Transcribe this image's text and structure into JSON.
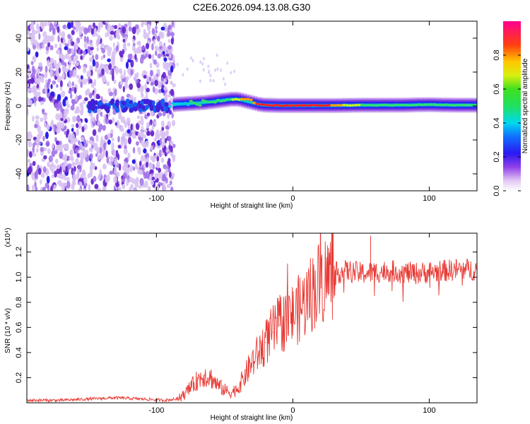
{
  "title": "C2E6.2026.094.13.08.G30",
  "colors": {
    "signal_line": "#e83a34",
    "scatter": "#6a28d8",
    "background": "#ffffff"
  },
  "chart_data": [
    {
      "type": "heatmap",
      "name": "spectrogram",
      "xlabel": "Height of straight line (km)",
      "ylabel": "Frequency (Hz)",
      "xlim": [
        -195,
        135
      ],
      "ylim": [
        -50,
        50
      ],
      "xticks": [
        -100,
        0,
        100
      ],
      "yticks": [
        -40,
        -20,
        0,
        20,
        40
      ],
      "colorbar": {
        "label": "Normalized spectral amplitude",
        "range": [
          0.0,
          1.0
        ],
        "ticks": [
          0.0,
          0.2,
          0.4,
          0.6,
          0.8
        ]
      },
      "noise_region_x": [
        -195,
        -87
      ],
      "track": {
        "x": [
          -95,
          -85,
          -75,
          -65,
          -55,
          -45,
          -40,
          -35,
          -30,
          -25,
          -20,
          -10,
          0,
          10,
          20,
          30,
          40,
          50,
          60,
          70,
          80,
          90,
          100,
          110,
          120,
          135
        ],
        "freq": [
          0,
          1,
          1.5,
          2,
          3,
          4,
          4,
          3,
          2,
          1,
          0.5,
          0.3,
          0.3,
          0.3,
          0.3,
          0.3,
          0.4,
          0.5,
          0.5,
          0.5,
          0.5,
          0.7,
          0.8,
          0.6,
          0.5,
          0.5
        ],
        "amplitude": [
          0.3,
          0.4,
          0.45,
          0.5,
          0.55,
          0.6,
          0.7,
          0.8,
          0.85,
          0.9,
          0.95,
          1.0,
          1.0,
          1.0,
          0.95,
          0.85,
          0.7,
          0.6,
          0.55,
          0.55,
          0.55,
          0.55,
          0.6,
          0.55,
          0.5,
          0.5
        ]
      }
    },
    {
      "type": "line",
      "name": "snr",
      "xlabel": "Height of straight line (km)",
      "ylabel": "SNR (10 * v/v)",
      "scale_label": "(x10⁴)",
      "xlim": [
        -195,
        135
      ],
      "ylim": [
        0.0,
        1.35
      ],
      "xticks": [
        -100,
        0,
        100
      ],
      "yticks": [
        0.2,
        0.4,
        0.6,
        0.8,
        1.0,
        1.2
      ],
      "series": [
        {
          "name": "SNR",
          "x": [
            -195,
            -170,
            -150,
            -130,
            -110,
            -95,
            -85,
            -80,
            -75,
            -70,
            -65,
            -60,
            -55,
            -50,
            -45,
            -40,
            -35,
            -30,
            -25,
            -20,
            -15,
            -10,
            -5,
            0,
            5,
            10,
            15,
            20,
            25,
            30,
            35,
            40,
            50,
            60,
            70,
            80,
            90,
            100,
            110,
            120,
            135
          ],
          "values": [
            0.02,
            0.02,
            0.03,
            0.04,
            0.03,
            0.02,
            0.03,
            0.06,
            0.12,
            0.18,
            0.22,
            0.2,
            0.14,
            0.1,
            0.08,
            0.12,
            0.22,
            0.32,
            0.4,
            0.48,
            0.56,
            0.62,
            0.66,
            0.7,
            0.75,
            0.82,
            0.9,
            0.96,
            1.0,
            1.03,
            1.04,
            1.05,
            1.03,
            1.04,
            1.05,
            1.04,
            1.03,
            1.04,
            1.05,
            1.06,
            1.06
          ]
        }
      ]
    }
  ]
}
